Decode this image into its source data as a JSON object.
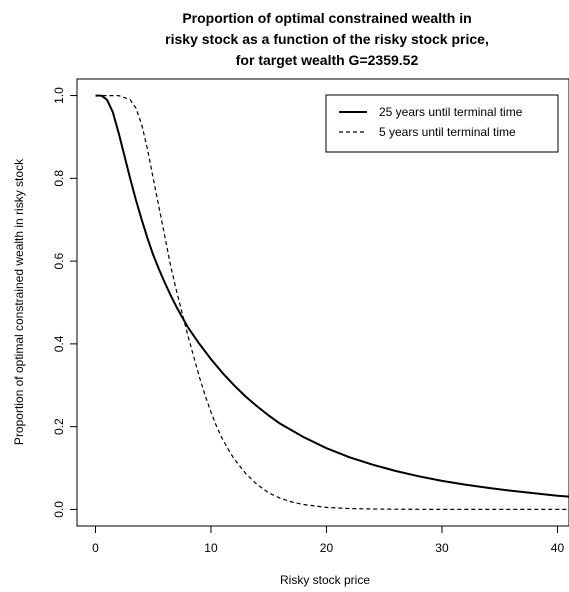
{
  "chart_data": {
    "type": "line",
    "title_lines": [
      "Proportion of optimal constrained wealth in",
      "risky stock as a function of the risky stock price,",
      "for target wealth G=2359.52"
    ],
    "xlabel": "Risky stock price",
    "ylabel": "Proportion of optimal constrained wealth in risky stock",
    "xlim": [
      -1.6,
      41
    ],
    "ylim": [
      -0.04,
      1.04
    ],
    "x_ticks": [
      0,
      10,
      20,
      30,
      40
    ],
    "x_tick_labels": [
      "0",
      "10",
      "20",
      "30",
      "40"
    ],
    "y_ticks": [
      0.0,
      0.2,
      0.4,
      0.6,
      0.8,
      1.0
    ],
    "y_tick_labels": [
      "0.0",
      "0.2",
      "0.4",
      "0.6",
      "0.8",
      "1.0"
    ],
    "legend_position": "top-right",
    "grid": false,
    "series": [
      {
        "name": "25 years until terminal time",
        "line_style": "solid",
        "color": "#000000",
        "x": [
          0,
          0.5,
          1,
          1.5,
          2,
          2.5,
          3,
          3.5,
          4,
          4.5,
          5,
          5.5,
          6,
          6.5,
          7,
          7.5,
          8,
          9,
          10,
          11,
          12,
          13,
          14,
          15,
          16,
          18,
          20,
          22,
          24,
          26,
          28,
          30,
          32,
          34,
          36,
          38,
          40,
          41
        ],
        "y": [
          1.0,
          1.0,
          0.99,
          0.96,
          0.91,
          0.855,
          0.8,
          0.748,
          0.7,
          0.655,
          0.615,
          0.58,
          0.548,
          0.518,
          0.49,
          0.465,
          0.44,
          0.4,
          0.363,
          0.33,
          0.3,
          0.273,
          0.249,
          0.227,
          0.207,
          0.175,
          0.148,
          0.126,
          0.108,
          0.093,
          0.08,
          0.069,
          0.06,
          0.052,
          0.045,
          0.039,
          0.033,
          0.031
        ]
      },
      {
        "name": "5 years until terminal time",
        "line_style": "dashed",
        "color": "#000000",
        "x": [
          0,
          1,
          2,
          3,
          3.5,
          4,
          4.5,
          5,
          5.5,
          6,
          6.5,
          7,
          7.5,
          8,
          8.5,
          9,
          9.5,
          10,
          10.5,
          11,
          11.5,
          12,
          13,
          14,
          15,
          16,
          17,
          18,
          20,
          22,
          24,
          26,
          30,
          35,
          41
        ],
        "y": [
          1.0,
          1.0,
          1.0,
          0.99,
          0.97,
          0.93,
          0.87,
          0.8,
          0.73,
          0.66,
          0.59,
          0.53,
          0.475,
          0.42,
          0.37,
          0.32,
          0.275,
          0.235,
          0.2,
          0.17,
          0.145,
          0.122,
          0.087,
          0.06,
          0.04,
          0.027,
          0.018,
          0.012,
          0.005,
          0.002,
          0.001,
          0.0005,
          0.0,
          0.0,
          0.0
        ]
      }
    ]
  }
}
